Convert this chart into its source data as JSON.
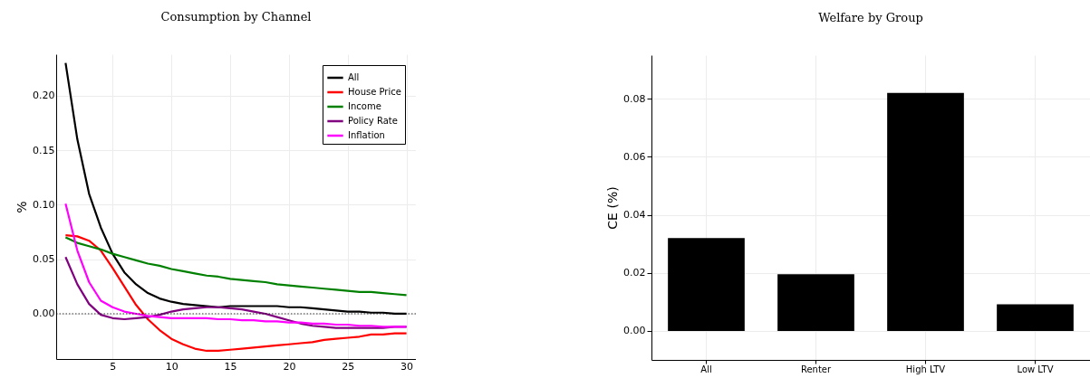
{
  "chart_data": [
    {
      "type": "line",
      "title": "Consumption by Channel",
      "ylabel": "%",
      "x": [
        1,
        2,
        3,
        4,
        5,
        6,
        7,
        8,
        9,
        10,
        11,
        12,
        13,
        14,
        15,
        16,
        17,
        18,
        19,
        20,
        21,
        22,
        23,
        24,
        25,
        26,
        27,
        28,
        29,
        30
      ],
      "series": [
        {
          "name": "All",
          "color": "#000000",
          "values": [
            0.23,
            0.16,
            0.11,
            0.079,
            0.055,
            0.038,
            0.027,
            0.019,
            0.014,
            0.011,
            0.009,
            0.008,
            0.007,
            0.006,
            0.007,
            0.007,
            0.007,
            0.007,
            0.007,
            0.006,
            0.006,
            0.005,
            0.004,
            0.003,
            0.002,
            0.002,
            0.001,
            0.001,
            0.0,
            0.0
          ]
        },
        {
          "name": "House Price",
          "color": "#ff0000",
          "values": [
            0.072,
            0.071,
            0.067,
            0.058,
            0.042,
            0.025,
            0.008,
            -0.005,
            -0.015,
            -0.023,
            -0.028,
            -0.032,
            -0.034,
            -0.034,
            -0.033,
            -0.032,
            -0.031,
            -0.03,
            -0.029,
            -0.028,
            -0.027,
            -0.026,
            -0.024,
            -0.023,
            -0.022,
            -0.021,
            -0.019,
            -0.019,
            -0.018,
            -0.018
          ]
        },
        {
          "name": "Income",
          "color": "#008000",
          "values": [
            0.07,
            0.065,
            0.062,
            0.059,
            0.055,
            0.052,
            0.049,
            0.046,
            0.044,
            0.041,
            0.039,
            0.037,
            0.035,
            0.034,
            0.032,
            0.031,
            0.03,
            0.029,
            0.027,
            0.026,
            0.025,
            0.024,
            0.023,
            0.022,
            0.021,
            0.02,
            0.02,
            0.019,
            0.018,
            0.017
          ]
        },
        {
          "name": "Policy Rate",
          "color": "#800080",
          "values": [
            0.052,
            0.027,
            0.009,
            -0.001,
            -0.004,
            -0.005,
            -0.004,
            -0.003,
            -0.001,
            0.002,
            0.004,
            0.005,
            0.006,
            0.006,
            0.005,
            0.004,
            0.002,
            0.0,
            -0.003,
            -0.006,
            -0.009,
            -0.011,
            -0.012,
            -0.013,
            -0.013,
            -0.013,
            -0.013,
            -0.013,
            -0.012,
            -0.012
          ]
        },
        {
          "name": "Inflation",
          "color": "#ff00ff",
          "values": [
            0.101,
            0.058,
            0.029,
            0.012,
            0.006,
            0.002,
            0.0,
            -0.002,
            -0.003,
            -0.004,
            -0.004,
            -0.004,
            -0.004,
            -0.005,
            -0.005,
            -0.006,
            -0.006,
            -0.007,
            -0.007,
            -0.008,
            -0.008,
            -0.009,
            -0.009,
            -0.01,
            -0.01,
            -0.011,
            -0.011,
            -0.012,
            -0.012,
            -0.012
          ]
        }
      ],
      "xlim": [
        0.2,
        30.8
      ],
      "xticks": [
        5,
        10,
        15,
        20,
        25,
        30
      ],
      "ylim": [
        -0.0415,
        0.238
      ],
      "yticks": [
        {
          "value": 0,
          "label": "0.00"
        },
        {
          "value": 0.05,
          "label": "0.05"
        },
        {
          "value": 0.1,
          "label": "0.10"
        },
        {
          "value": 0.15,
          "label": "0.15"
        },
        {
          "value": 0.2,
          "label": "0.20"
        }
      ],
      "ref_lines": [
        {
          "axis": "y",
          "value": 0,
          "label": null,
          "color": "#000000",
          "line_style": "dotted"
        }
      ],
      "grid": true,
      "legend": "top right"
    },
    {
      "type": "bar",
      "title": "Welfare by Group",
      "ylabel": "CE (%)",
      "categories": [
        "All",
        "Renter",
        "High LTV",
        "Low LTV"
      ],
      "values": [
        0.032,
        0.0195,
        0.082,
        0.0092
      ],
      "color": "#000000",
      "ylim": [
        -0.01,
        0.095
      ],
      "yticks": [
        {
          "value": 0,
          "label": "0.00"
        },
        {
          "value": 0.02,
          "label": "0.02"
        },
        {
          "value": 0.04,
          "label": "0.04"
        },
        {
          "value": 0.06,
          "label": "0.06"
        },
        {
          "value": 0.08,
          "label": "0.08"
        }
      ],
      "grid": true
    }
  ]
}
